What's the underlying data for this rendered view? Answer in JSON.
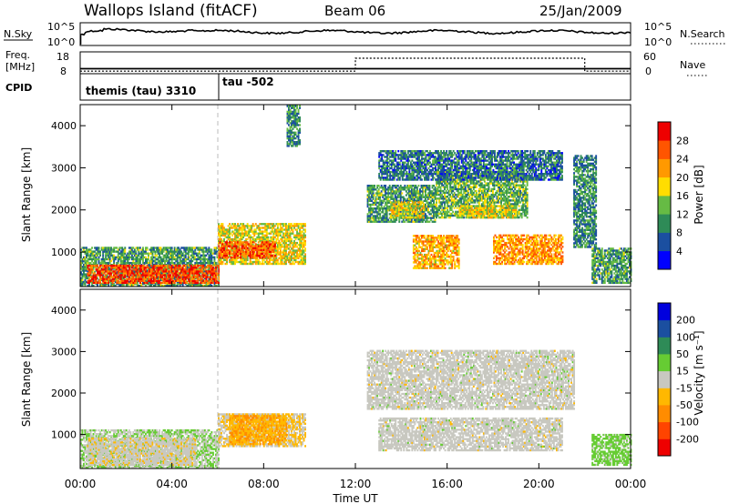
{
  "header": {
    "title": "Wallops Island (fitACF)",
    "beam": "Beam 06",
    "date": "25/Jan/2009"
  },
  "summary_panels": {
    "nsky": {
      "label": "N.Sky",
      "ticks": [
        "10^5",
        "10^0"
      ]
    },
    "nsearch": {
      "label": "N.Search",
      "ticks": [
        "10^5",
        "10^0"
      ]
    },
    "freq": {
      "label_top": "Freq.",
      "label_bottom": "[MHz]",
      "ticks": [
        "18",
        "8"
      ],
      "values": [
        {
          "t": 0.0,
          "v": 10.5
        },
        {
          "t": 24.0,
          "v": 10.5
        }
      ]
    },
    "nave": {
      "label": "Nave",
      "ticks": [
        "60",
        "0"
      ],
      "values": [
        {
          "t": 0.0,
          "v": 10
        },
        {
          "t": 12.0,
          "v": 10
        },
        {
          "t": 12.0,
          "v": 60
        },
        {
          "t": 22.0,
          "v": 60
        },
        {
          "t": 22.0,
          "v": 10
        },
        {
          "t": 24.0,
          "v": 10
        }
      ]
    },
    "cpid": {
      "label": "CPID",
      "entries": [
        {
          "start": 0.0,
          "text": "themis (tau) 3310"
        },
        {
          "start": 6.0,
          "text": "tau -502"
        }
      ]
    }
  },
  "colors": {
    "power_scale": [
      "#0000ff",
      "#1b4fa0",
      "#2e8b57",
      "#66bb44",
      "#ffdd00",
      "#ff9900",
      "#ff5500",
      "#ee0000"
    ],
    "velocity_scale": [
      "#ee0000",
      "#ff4400",
      "#ff8c00",
      "#ffb800",
      "#c8c8c0",
      "#66cc33",
      "#2e8b57",
      "#1b4fa0",
      "#0000dd"
    ]
  },
  "chart_data": [
    {
      "type": "heatmap",
      "name_hint": "power",
      "xlabel": "Time UT",
      "ylabel": "Slant Range [km]",
      "xlim": [
        0,
        24
      ],
      "ylim": [
        180,
        4500
      ],
      "y_ticks": [
        1000,
        2000,
        3000,
        4000
      ],
      "y_tick_labels": [
        "1000",
        "2000",
        "3000",
        "4000"
      ],
      "colorbar": {
        "label": "Power [dB]",
        "ticks": [
          "4",
          "8",
          "12",
          "16",
          "20",
          "24",
          "28"
        ],
        "range": [
          0,
          30
        ]
      },
      "regions": [
        {
          "t0": 0.0,
          "t1": 6.0,
          "r0": 180,
          "r1": 1100,
          "level": 0.35
        },
        {
          "t0": 0.3,
          "t1": 6.0,
          "r0": 250,
          "r1": 700,
          "level": 0.85
        },
        {
          "t0": 6.0,
          "t1": 9.8,
          "r0": 700,
          "r1": 1650,
          "level": 0.55
        },
        {
          "t0": 6.0,
          "t1": 8.5,
          "r0": 850,
          "r1": 1250,
          "level": 0.8
        },
        {
          "t0": 9.0,
          "t1": 9.6,
          "r0": 3500,
          "r1": 4450,
          "level": 0.3
        },
        {
          "t0": 12.5,
          "t1": 15.5,
          "r0": 1700,
          "r1": 2600,
          "level": 0.35
        },
        {
          "t0": 13.5,
          "t1": 15.0,
          "r0": 1800,
          "r1": 2200,
          "level": 0.55
        },
        {
          "t0": 14.5,
          "t1": 16.5,
          "r0": 600,
          "r1": 1400,
          "level": 0.65
        },
        {
          "t0": 15.5,
          "t1": 19.5,
          "r0": 1800,
          "r1": 2900,
          "level": 0.4
        },
        {
          "t0": 16.5,
          "t1": 19.0,
          "r0": 1800,
          "r1": 2100,
          "level": 0.55
        },
        {
          "t0": 18.0,
          "t1": 21.0,
          "r0": 700,
          "r1": 1400,
          "level": 0.7
        },
        {
          "t0": 13.0,
          "t1": 21.0,
          "r0": 2700,
          "r1": 3400,
          "level": 0.25
        },
        {
          "t0": 21.5,
          "t1": 22.5,
          "r0": 1100,
          "r1": 3300,
          "level": 0.3
        },
        {
          "t0": 22.3,
          "t1": 24.0,
          "r0": 250,
          "r1": 1100,
          "level": 0.35
        }
      ]
    },
    {
      "type": "heatmap",
      "name_hint": "velocity",
      "xlabel": "Time UT",
      "ylabel": "Slant Range [km]",
      "xlim": [
        0,
        24
      ],
      "ylim": [
        180,
        4500
      ],
      "x_ticks": [
        0,
        4,
        8,
        12,
        16,
        20,
        24
      ],
      "x_tick_labels": [
        "00:00",
        "04:00",
        "08:00",
        "12:00",
        "16:00",
        "20:00",
        "00:00"
      ],
      "y_ticks": [
        1000,
        2000,
        3000,
        4000
      ],
      "y_tick_labels": [
        "1000",
        "2000",
        "3000",
        "4000"
      ],
      "colorbar": {
        "label": "Velocity [m s⁻¹]",
        "ticks": [
          "-200",
          "-100",
          "-50",
          "-15",
          "15",
          "50",
          "100",
          "200"
        ],
        "range": [
          -250,
          250
        ]
      },
      "regions": [
        {
          "t0": 0.0,
          "t1": 6.0,
          "r0": 180,
          "r1": 1100,
          "level": 0.55
        },
        {
          "t0": 0.3,
          "t1": 5.0,
          "r0": 250,
          "r1": 900,
          "level": 0.48
        },
        {
          "t0": 6.0,
          "t1": 9.8,
          "r0": 700,
          "r1": 1500,
          "level": 0.45
        },
        {
          "t0": 6.5,
          "t1": 9.0,
          "r0": 750,
          "r1": 1450,
          "level": 0.35
        },
        {
          "t0": 12.5,
          "t1": 21.5,
          "r0": 1600,
          "r1": 3000,
          "level": 0.5
        },
        {
          "t0": 13.0,
          "t1": 21.0,
          "r0": 600,
          "r1": 1400,
          "level": 0.5
        },
        {
          "t0": 22.3,
          "t1": 24.0,
          "r0": 250,
          "r1": 1000,
          "level": 0.6
        }
      ]
    }
  ]
}
